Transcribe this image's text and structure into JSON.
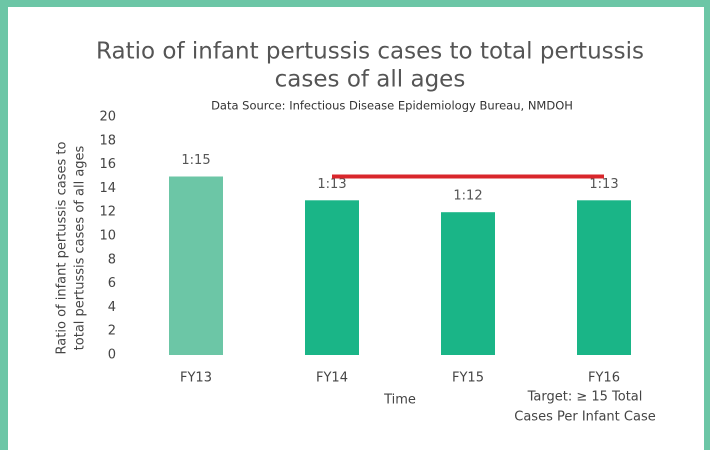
{
  "chart_data": {
    "type": "bar",
    "title": [
      "Ratio of infant pertussis cases to total pertussis",
      "cases of all ages"
    ],
    "subtitle": "Data Source: Infectious Disease Epidemiology Bureau, NMDOH",
    "x_label": "Time",
    "y_label": [
      "Ratio of infant pertussis cases to",
      "total pertussis cases of all ages"
    ],
    "categories": [
      "FY13",
      "FY14",
      "FY15",
      "FY16"
    ],
    "values": [
      15,
      13,
      12,
      13
    ],
    "value_labels": [
      "1:15",
      "1:13",
      "1:12",
      "1:13"
    ],
    "colors": [
      "#6cc6a6",
      "#1ab587",
      "#1ab587",
      "#1ab587"
    ],
    "ylim": [
      0,
      20
    ],
    "yticks": [
      0,
      2,
      4,
      6,
      8,
      10,
      12,
      14,
      16,
      18,
      20
    ],
    "grid": false,
    "target": {
      "values": [
        null,
        15,
        15,
        15
      ],
      "color": "#d9262b"
    },
    "annotation": [
      "Target: ≥ 15 Total",
      "Cases Per Infant Case"
    ]
  }
}
